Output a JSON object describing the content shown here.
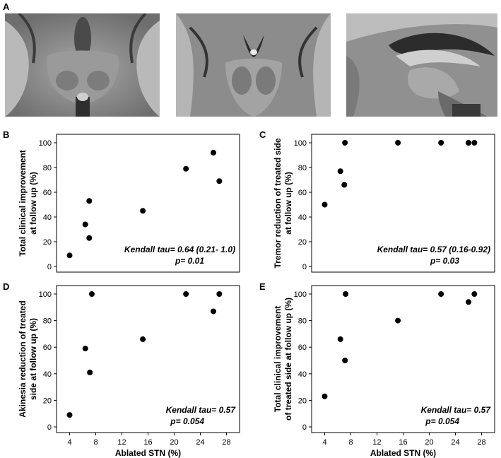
{
  "panel_labels": [
    "A",
    "B",
    "C",
    "D",
    "E"
  ],
  "images": [
    {
      "name": "axial-mri-slice"
    },
    {
      "name": "coronal-mri-slice"
    },
    {
      "name": "sagittal-mri-slice"
    }
  ],
  "chart_data": [
    {
      "type": "scatter",
      "panel": "B",
      "ylabel_lines": [
        "Total clinical improvement",
        "at follow up (%)"
      ],
      "xlabel": "",
      "xlim": [
        2,
        30
      ],
      "ylim": [
        0,
        100
      ],
      "xticks": [],
      "yticks": [
        0,
        20,
        40,
        60,
        80,
        100
      ],
      "points": [
        [
          4,
          9
        ],
        [
          6.4,
          34
        ],
        [
          7,
          23
        ],
        [
          7,
          53
        ],
        [
          15.2,
          45
        ],
        [
          21.8,
          79
        ],
        [
          26,
          92
        ],
        [
          26.9,
          69
        ]
      ],
      "annotation_lines": [
        "Kendall tau= 0.64 (0.21- 1.0)",
        "p= 0.01"
      ]
    },
    {
      "type": "scatter",
      "panel": "C",
      "ylabel_lines": [
        "Tremor reduction of treated side",
        "at follow up (%)"
      ],
      "xlabel": "",
      "xlim": [
        2,
        30
      ],
      "ylim": [
        0,
        100
      ],
      "xticks": [],
      "yticks": [
        0,
        20,
        40,
        60,
        80,
        100
      ],
      "points": [
        [
          4,
          50
        ],
        [
          6.4,
          77
        ],
        [
          7,
          66
        ],
        [
          7.1,
          100
        ],
        [
          15.2,
          100
        ],
        [
          21.8,
          100
        ],
        [
          26,
          100
        ],
        [
          26.9,
          100
        ]
      ],
      "annotation_lines": [
        "Kendall tau= 0.57 (0.16-0.92)",
        "p= 0.03"
      ]
    },
    {
      "type": "scatter",
      "panel": "D",
      "ylabel_lines": [
        "Akinesia reduction of treated",
        "side at follow up (%)"
      ],
      "xlabel": "Ablated STN (%)",
      "xlim": [
        2,
        30
      ],
      "ylim": [
        0,
        100
      ],
      "xticks": [
        4,
        8,
        12,
        16,
        20,
        24,
        28
      ],
      "yticks": [
        0,
        20,
        40,
        60,
        80,
        100
      ],
      "points": [
        [
          4,
          9
        ],
        [
          6.4,
          59
        ],
        [
          7.1,
          41
        ],
        [
          7.4,
          100
        ],
        [
          15.2,
          66
        ],
        [
          21.8,
          100
        ],
        [
          26,
          87
        ],
        [
          26.9,
          100
        ]
      ],
      "annotation_lines": [
        "Kendall tau= 0.57",
        "p= 0.054"
      ]
    },
    {
      "type": "scatter",
      "panel": "E",
      "ylabel_lines": [
        "Total clinical improvement",
        "of treated side at follow up (%)"
      ],
      "xlabel": "Ablated STN (%)",
      "xlim": [
        2,
        30
      ],
      "ylim": [
        0,
        100
      ],
      "xticks": [
        4,
        8,
        12,
        16,
        20,
        24,
        28
      ],
      "yticks": [
        0,
        20,
        40,
        60,
        80,
        100
      ],
      "points": [
        [
          4,
          23
        ],
        [
          6.4,
          66
        ],
        [
          7.1,
          50
        ],
        [
          7.2,
          100
        ],
        [
          15.2,
          80
        ],
        [
          21.8,
          100
        ],
        [
          26,
          94
        ],
        [
          26.9,
          100
        ]
      ],
      "annotation_lines": [
        "Kendall tau= 0.57",
        "p= 0.054"
      ]
    }
  ]
}
